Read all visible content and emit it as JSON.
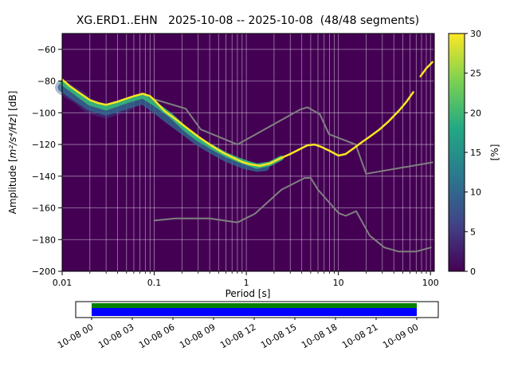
{
  "figure": {
    "title": "XG.ERD1..EHN   2025-10-08 -- 2025-10-08  (48/48 segments)",
    "xlabel": "Period [s]",
    "ylabel_prefix": "Amplitude [",
    "ylabel_math": "m²/s⁴/Hz",
    "ylabel_suffix": "] [dB]"
  },
  "colorbar": {
    "label": "[%]",
    "vmin": 0,
    "vmax": 30,
    "ticks": [
      0,
      5,
      10,
      15,
      20,
      25,
      30
    ],
    "colors": [
      "#440154",
      "#414487",
      "#2a788e",
      "#22a884",
      "#7ad151",
      "#fde725"
    ]
  },
  "timeline": {
    "labels": [
      "10-08 00",
      "10-08 03",
      "10-08 06",
      "10-08 09",
      "10-08 12",
      "10-08 15",
      "10-08 18",
      "10-08 21",
      "10-09 00"
    ],
    "colors": {
      "green": "#008000",
      "blue": "#0000ff"
    }
  },
  "chart_data": {
    "type": "heatmap",
    "title": "XG.ERD1..EHN   2025-10-08 -- 2025-10-08  (48/48 segments)",
    "xlabel": "Period [s]",
    "ylabel": "Amplitude [m2/s4/Hz] [dB]",
    "xscale": "log",
    "xlim": [
      0.01,
      110
    ],
    "ylim": [
      -200,
      -50
    ],
    "xticks": [
      0.01,
      0.1,
      1,
      10,
      100
    ],
    "xtick_labels": [
      "0.01",
      "0.1",
      "1",
      "10",
      "100"
    ],
    "yticks": [
      -200,
      -180,
      -160,
      -140,
      -120,
      -100,
      -80,
      -60
    ],
    "background": "#440154",
    "grid_color": "#ffffff",
    "grid_opacity": 0.5,
    "probability_scale_percent": [
      0,
      30
    ],
    "series": [
      {
        "name": "nhnm-high-noise-model",
        "color": "#808080",
        "width": 2,
        "opacity": 1,
        "x": [
          0.1,
          0.22,
          0.32,
          0.8,
          3.8,
          4.6,
          6.3,
          7.9,
          15.4,
          20.0,
          105.0
        ],
        "y": [
          -91.5,
          -97.4,
          -110.5,
          -120.0,
          -98.1,
          -96.5,
          -101.0,
          -113.5,
          -120.0,
          -138.5,
          -131.3
        ]
      },
      {
        "name": "nlnm-low-noise-model",
        "color": "#808080",
        "width": 2,
        "opacity": 1,
        "x": [
          0.1,
          0.17,
          0.4,
          0.8,
          1.24,
          2.4,
          4.3,
          5.0,
          6.0,
          10.0,
          12.0,
          15.6,
          21.9,
          31.6,
          45.0,
          70.0,
          101.0
        ],
        "y": [
          -168.0,
          -166.7,
          -166.7,
          -169.2,
          -163.7,
          -148.6,
          -141.1,
          -141.1,
          -148.5,
          -163.2,
          -165.0,
          -162.1,
          -177.5,
          -185.0,
          -187.5,
          -187.5,
          -185.0
        ]
      },
      {
        "name": "psd-spread-outer",
        "color": "#3b528b",
        "width": 18,
        "opacity": 0.4,
        "x": [
          0.01,
          0.015,
          0.02,
          0.03,
          0.05
        ],
        "y": [
          -84,
          -90,
          -96,
          -99,
          -95
        ]
      },
      {
        "name": "psd-spread-blue",
        "color": "#31688e",
        "width": 11,
        "opacity": 0.8,
        "x": [
          0.01,
          0.02,
          0.03,
          0.05,
          0.075,
          0.1,
          0.15,
          0.22,
          0.3,
          0.45,
          0.6,
          0.8,
          1.0,
          1.3,
          1.6
        ],
        "y": [
          -84,
          -96,
          -99,
          -95,
          -92,
          -97,
          -105,
          -112,
          -118,
          -124,
          -128,
          -131,
          -133,
          -134.5,
          -134
        ]
      },
      {
        "name": "psd-spread-green",
        "color": "#35b779",
        "width": 6,
        "opacity": 0.9,
        "x": [
          0.01,
          0.02,
          0.03,
          0.05,
          0.075,
          0.1,
          0.15,
          0.22,
          0.3,
          0.45,
          0.6,
          0.8,
          1.0,
          1.3,
          1.8,
          2.4
        ],
        "y": [
          -81,
          -94,
          -97,
          -92.5,
          -89.5,
          -94,
          -101.5,
          -110.5,
          -116.5,
          -122.5,
          -126.5,
          -129.5,
          -131.5,
          -133.8,
          -132.2,
          -128.5
        ]
      },
      {
        "name": "psd-mode",
        "color": "#f8e621",
        "width": 2.5,
        "opacity": 1,
        "x": [
          0.01,
          0.012,
          0.015,
          0.02,
          0.025,
          0.03,
          0.04,
          0.05,
          0.06,
          0.075,
          0.09,
          0.1,
          0.13,
          0.17,
          0.22,
          0.3,
          0.4,
          0.55,
          0.7,
          0.9,
          1.1,
          1.4,
          1.8,
          2.3,
          3.0,
          3.8,
          4.6,
          5.5,
          6.5,
          8.0,
          10.0,
          12.0,
          15.0,
          18.0,
          22.0,
          28.0,
          35.0,
          45.0,
          55.0,
          65.0
        ],
        "y": [
          -79,
          -83,
          -87,
          -92,
          -94,
          -95,
          -93,
          -91,
          -89.5,
          -88,
          -89.5,
          -92,
          -99,
          -104,
          -109,
          -115,
          -120,
          -125,
          -128,
          -131,
          -132.5,
          -133.5,
          -132,
          -129,
          -126,
          -123,
          -120.5,
          -120,
          -121.5,
          -124,
          -127,
          -126,
          -122,
          -118.5,
          -115,
          -110.5,
          -105.5,
          -99,
          -93,
          -87
        ]
      },
      {
        "name": "psd-mode-tail",
        "color": "#f8e621",
        "width": 2.5,
        "opacity": 1,
        "x": [
          78,
          90,
          105
        ],
        "y": [
          -77,
          -72,
          -68
        ]
      }
    ]
  }
}
